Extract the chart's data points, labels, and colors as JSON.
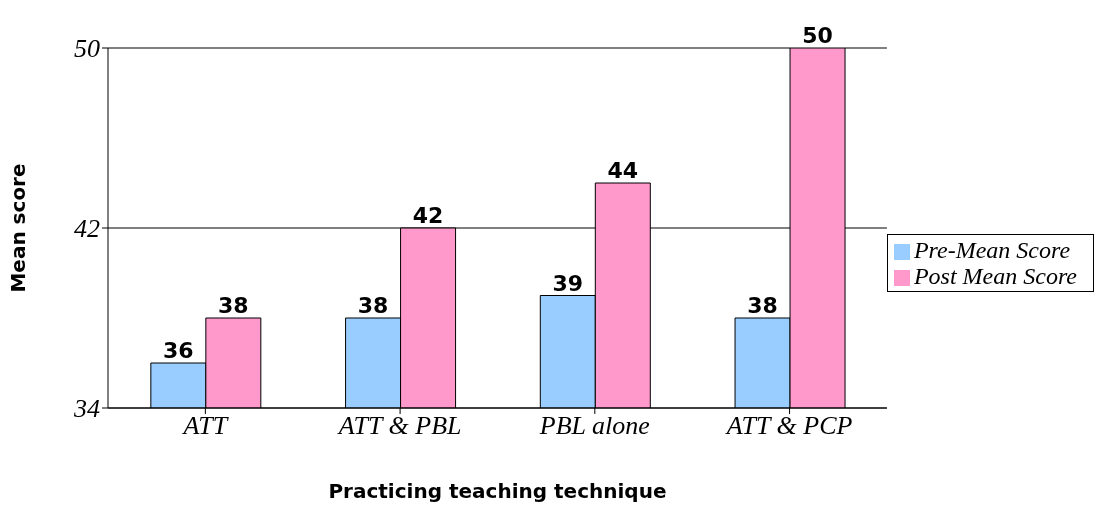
{
  "chart_data": {
    "type": "bar",
    "xlabel": "Practicing teaching technique",
    "ylabel": "Mean score",
    "categories": [
      "ATT",
      "ATT & PBL",
      "PBL alone",
      "ATT & PCP"
    ],
    "series": [
      {
        "name": "Pre-Mean Score",
        "color": "#99ccff",
        "values": [
          36,
          38,
          39,
          38
        ]
      },
      {
        "name": "Post Mean Score",
        "color": "#ff99cc",
        "values": [
          38,
          42,
          44,
          50
        ]
      }
    ],
    "ylim": [
      34,
      50
    ],
    "yticks": [
      34,
      42,
      50
    ],
    "grid": "y",
    "legend": "right",
    "data_labels": true
  }
}
